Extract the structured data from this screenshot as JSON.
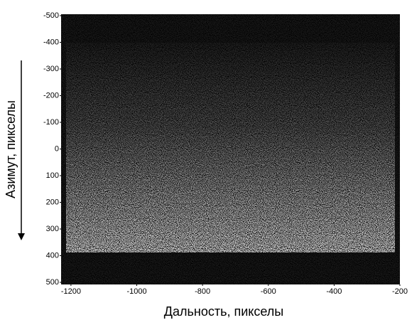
{
  "chart_data": {
    "type": "image",
    "xlabel": "Дальность, пикселы",
    "ylabel": "Азимут, пикселы",
    "xlim": [
      -1230,
      -200
    ],
    "ylim": [
      -500,
      500
    ],
    "xticks": [
      -1200,
      -1000,
      -800,
      -600,
      -400,
      -200
    ],
    "yticks": [
      -500,
      -400,
      -300,
      -200,
      -100,
      0,
      100,
      200,
      300,
      400,
      500
    ],
    "y_inverted": true
  }
}
